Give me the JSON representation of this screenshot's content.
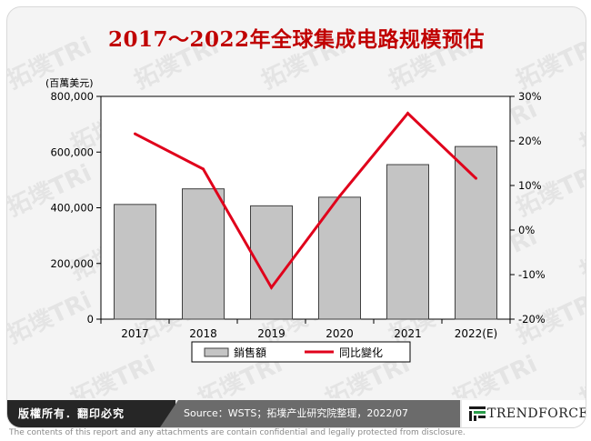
{
  "title": "2017～2022年全球集成电路规模预估",
  "footer": {
    "rights": "版權所有．翻印必究",
    "source": "Source：WSTS；拓墣产业研究院整理，2022/07",
    "brand": "TRENDFORCE"
  },
  "disclaimer": "The contents of this report and any attachments are contain confidential and legally protected from disclosure.",
  "watermark_text": "拓墣TRi",
  "colors": {
    "bar_fill": "#c4c4c4",
    "bar_stroke": "#404040",
    "line": "#e0001b",
    "title": "#c00000"
  },
  "chart_data": {
    "type": "bar",
    "title": "2017～2022年全球集成电路规模预估",
    "unit_label": "(百萬美元)",
    "categories": [
      "2017",
      "2018",
      "2019",
      "2020",
      "2021",
      "2022(E)"
    ],
    "series": [
      {
        "name": "銷售額",
        "type": "bar",
        "axis": "left",
        "values": [
          412000,
          468000,
          407000,
          438000,
          555000,
          620000
        ]
      },
      {
        "name": "同比變化",
        "type": "line",
        "axis": "right",
        "values": [
          21.6,
          13.7,
          -12.9,
          7.6,
          26.2,
          11.6
        ]
      }
    ],
    "y_left": {
      "min": 0,
      "max": 800000,
      "ticks": [
        0,
        200000,
        400000,
        600000,
        800000
      ],
      "tick_labels": [
        "0",
        "200,000",
        "400,000",
        "600,000",
        "800,000"
      ]
    },
    "y_right": {
      "min": -20,
      "max": 30,
      "ticks": [
        -20,
        -10,
        0,
        10,
        20,
        30
      ],
      "tick_labels": [
        "-20%",
        "-10%",
        "0%",
        "10%",
        "20%",
        "30%"
      ]
    },
    "legend": [
      "銷售額",
      "同比變化"
    ],
    "legend_position": "bottom-center",
    "grid": false
  }
}
